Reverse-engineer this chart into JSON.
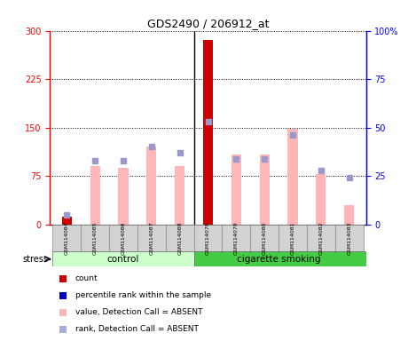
{
  "title": "GDS2490 / 206912_at",
  "samples": [
    "GSM114084",
    "GSM114085",
    "GSM114086",
    "GSM114087",
    "GSM114088",
    "GSM114078",
    "GSM114079",
    "GSM114080",
    "GSM114081",
    "GSM114082",
    "GSM114083"
  ],
  "pink_bar_values": [
    12,
    90,
    88,
    120,
    90,
    285,
    108,
    108,
    148,
    78,
    30
  ],
  "blue_square_values_pct": [
    5,
    33,
    33,
    40,
    37,
    53,
    34,
    34,
    46,
    28,
    24
  ],
  "red_bar_values": [
    12,
    0,
    0,
    0,
    0,
    285,
    0,
    0,
    0,
    0,
    0
  ],
  "pink_color": "#FFB6B6",
  "blue_color": "#9999CC",
  "red_color": "#CC0000",
  "ylim_left": [
    0,
    300
  ],
  "ylim_right": [
    0,
    100
  ],
  "yticks_left": [
    0,
    75,
    150,
    225,
    300
  ],
  "yticks_right": [
    0,
    25,
    50,
    75,
    100
  ],
  "control_color": "#CCFFCC",
  "smoking_color": "#44CC44",
  "sample_bg_color": "#D0D0D0",
  "background_color": "#FFFFFF",
  "legend_count_color": "#CC0000",
  "legend_percentile_color": "#0000CC",
  "legend_value_absent_color": "#FFB6B6",
  "legend_rank_absent_color": "#AAAADD",
  "bar_width": 0.35,
  "n_control": 5,
  "n_smoking": 6
}
